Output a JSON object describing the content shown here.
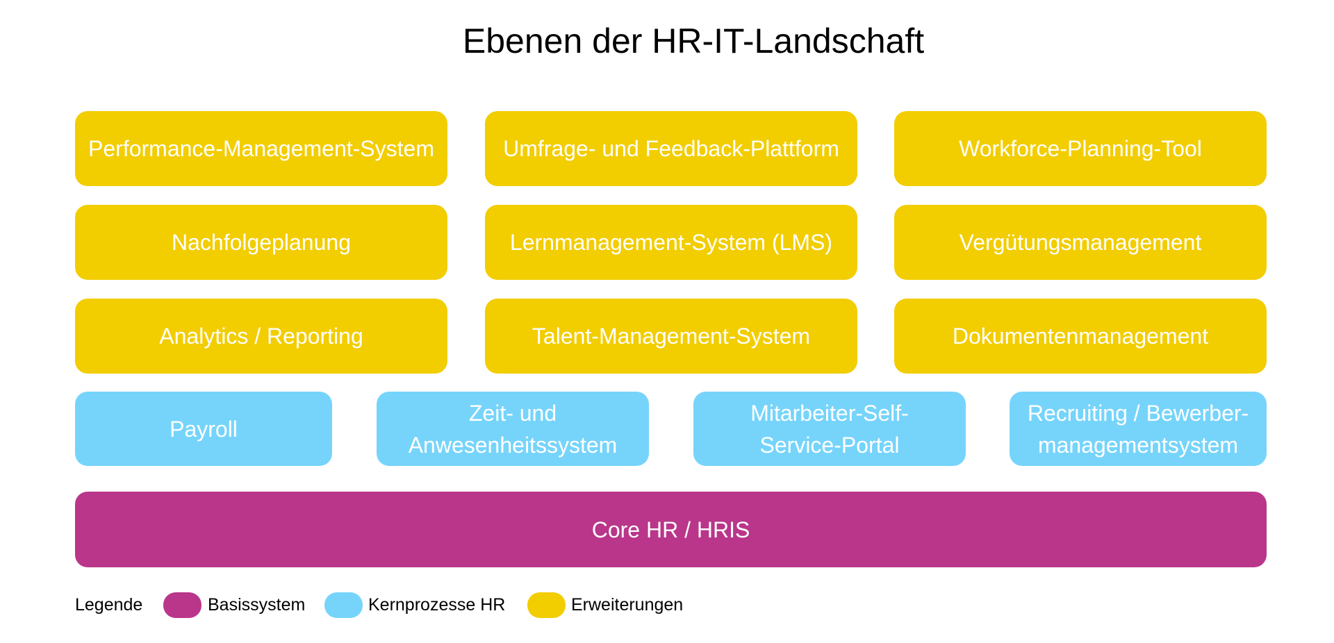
{
  "title": "Ebenen der HR-IT-Landschaft",
  "extensions": [
    [
      "Performance-Management-System",
      "Umfrage- und Feedback-Plattform",
      "Workforce-Planning-Tool"
    ],
    [
      "Nachfolgeplanung",
      "Lernmanagement-System (LMS)",
      "Vergütungsmanagement"
    ],
    [
      "Analytics / Reporting",
      "Talent-Management-System",
      "Dokumentenmanagement"
    ]
  ],
  "core_processes": [
    [
      "Payroll"
    ],
    [
      "Zeit- und",
      "Anwesenheitssystem"
    ],
    [
      "Mitarbeiter-Self-",
      "Service-Portal"
    ],
    [
      "Recruiting / Bewerber-",
      "managementsystem"
    ]
  ],
  "base": "Core HR / HRIS",
  "legend": {
    "label": "Legende",
    "items": [
      "Basissystem",
      "Kernprozesse HR",
      "Erweiterungen"
    ]
  }
}
